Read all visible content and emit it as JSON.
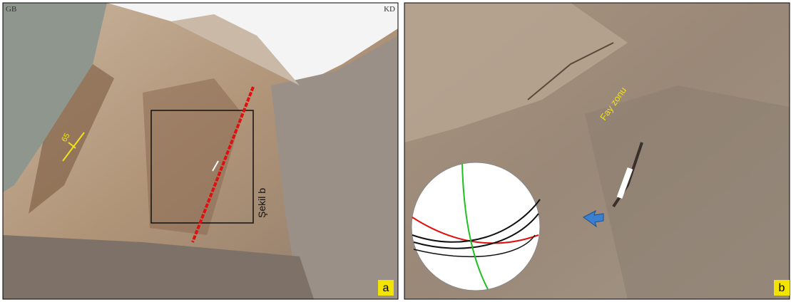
{
  "panels": [
    {
      "corner_left": "GB",
      "corner_right": "KD",
      "dip": "65",
      "inset_label": "Şekil b",
      "panel_label": "a"
    },
    {
      "annotation": "Fay zonu",
      "panel_label": "b"
    }
  ]
}
